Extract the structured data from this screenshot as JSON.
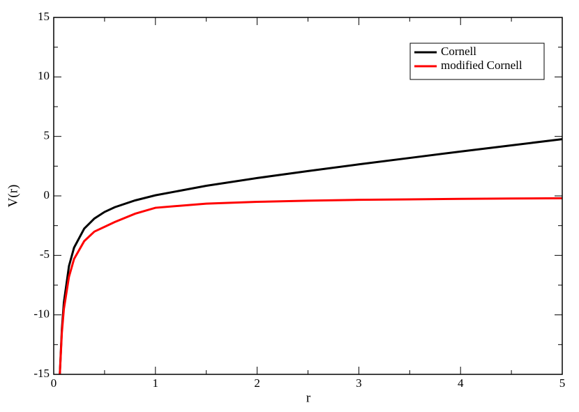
{
  "chart_data": {
    "type": "line",
    "x_label": "r",
    "y_label": "V(r)",
    "x": [
      0.06,
      0.08,
      0.1,
      0.15,
      0.2,
      0.3,
      0.4,
      0.5,
      0.6,
      0.8,
      1,
      1.5,
      2,
      2.5,
      3,
      3.5,
      4,
      4.5,
      5
    ],
    "series": [
      {
        "name": "Cornell",
        "color": "#000000",
        "values": [
          -14.99,
          -11.22,
          -8.95,
          -5.9,
          -4.35,
          -2.75,
          -1.9,
          -1.35,
          -0.95,
          -0.38,
          0.05,
          0.85,
          1.5,
          2.09,
          2.65,
          3.19,
          3.73,
          4.25,
          4.77
        ]
      },
      {
        "name": "modified Cornell",
        "color": "#ff0000",
        "values": [
          -15,
          -11.5,
          -9.5,
          -6.8,
          -5.3,
          -3.8,
          -3.0,
          -2.6,
          -2.2,
          -1.5,
          -1.0,
          -0.65,
          -0.5,
          -0.4,
          -0.33,
          -0.29,
          -0.25,
          -0.22,
          -0.2
        ]
      }
    ],
    "xlim": [
      0,
      5
    ],
    "xticks": [
      0,
      1,
      2,
      3,
      4,
      5
    ],
    "ylim": [
      -15,
      15
    ],
    "yticks": [
      -15,
      -10,
      -5,
      0,
      5,
      10,
      15
    ],
    "legend": "top-right"
  }
}
